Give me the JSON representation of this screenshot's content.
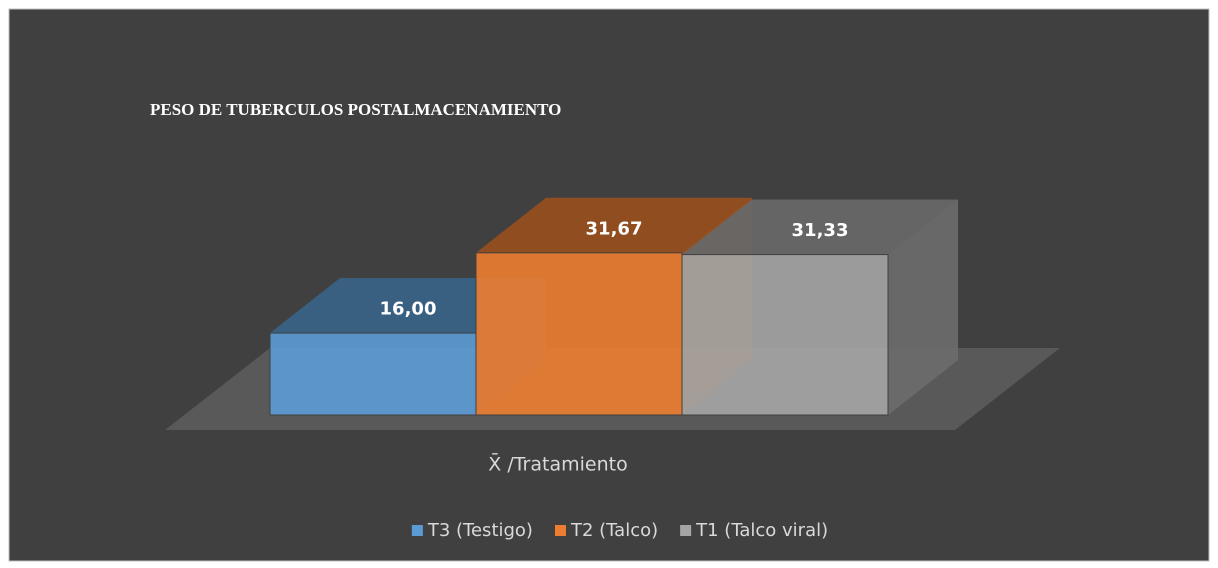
{
  "chart_data": {
    "type": "bar3d",
    "title": "PESO DE TUBERCULOS POSTALMACENAMIENTO",
    "categories": [
      "X̄ /Tratamiento"
    ],
    "series": [
      {
        "name": "T3 (Testigo)",
        "color": "#5b9bd5",
        "values": [
          16.0
        ],
        "value_labels": [
          "16,00"
        ]
      },
      {
        "name": "T2 (Talco)",
        "color": "#ed7d31",
        "values": [
          31.67
        ],
        "value_labels": [
          "31,67"
        ]
      },
      {
        "name": "T1 (Talco viral)",
        "color": "#a5a5a5",
        "values": [
          31.33
        ],
        "value_labels": [
          "31,33"
        ]
      }
    ]
  }
}
